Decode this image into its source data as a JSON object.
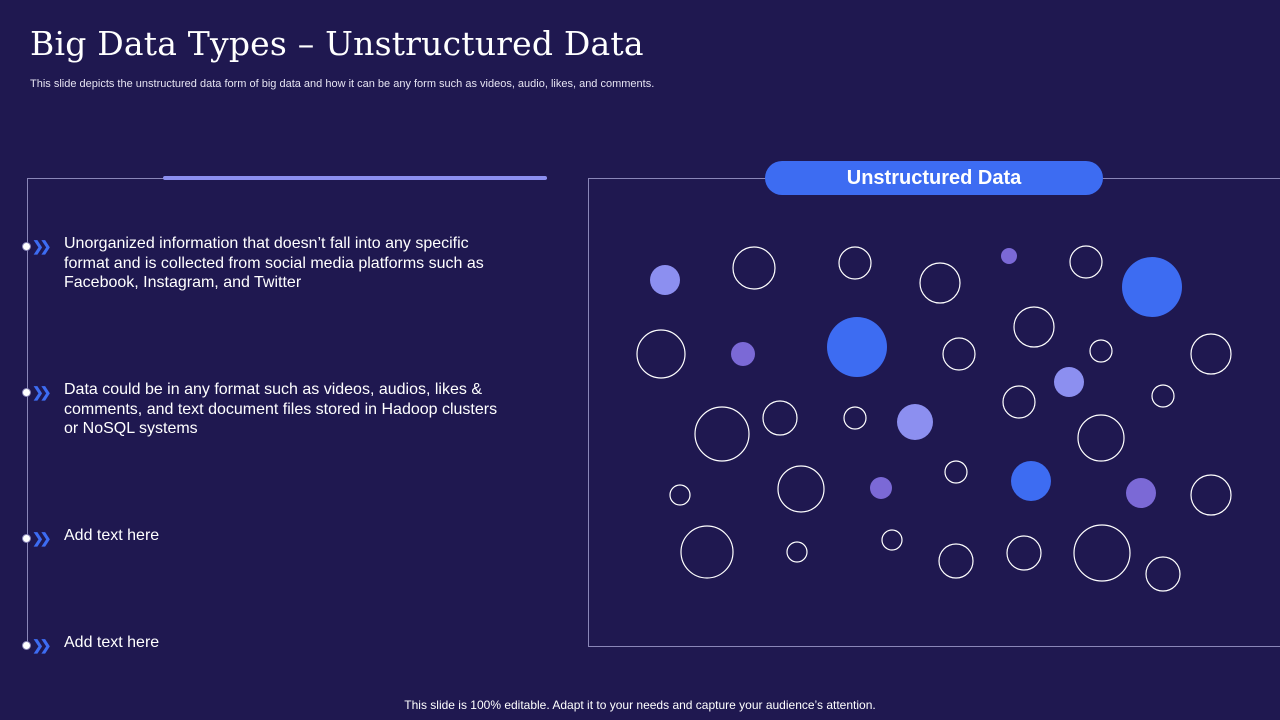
{
  "title": "Big Data Types – Unstructured Data",
  "subtitle": "This slide depicts the unstructured data form of big data and how it can be any form such as videos, audio, likes, and comments.",
  "bullets": [
    "Unorganized information that doesn’t fall into any specific format and is collected from social media platforms such as Facebook, Instagram,  and Twitter",
    "Data could be in any format such as videos, audios, likes & comments, and text document files stored in Hadoop clusters or NoSQL systems",
    "Add text here",
    "Add text here"
  ],
  "panel": {
    "heading": "Unstructured Data"
  },
  "footer": "This slide is 100% editable. Adapt it to your needs and capture your audience’s attention.",
  "colors": {
    "background": "#1f1850",
    "accent_blue": "#3d6cf2",
    "light_purple": "#8c8ff0",
    "purple": "#7b69d6"
  }
}
